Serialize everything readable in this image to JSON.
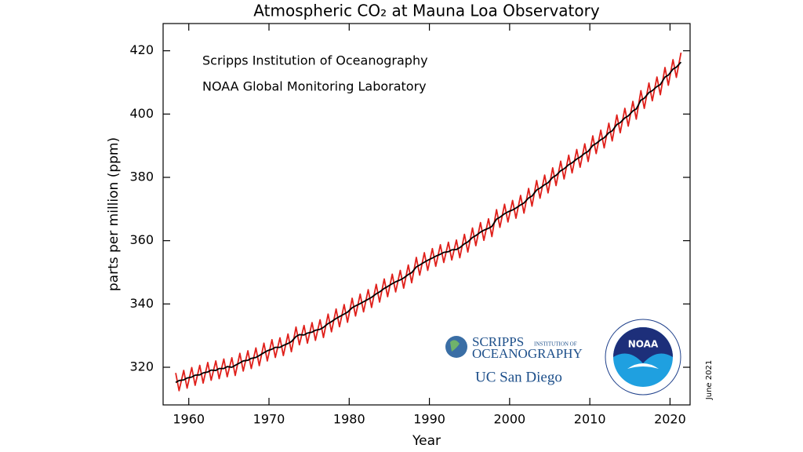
{
  "chart_data": {
    "type": "line",
    "title": "Atmospheric CO₂ at Mauna Loa Observatory",
    "x_label": "Year",
    "y_label": "parts per million (ppm)",
    "annotations": [
      "Scripps Institution of Oceanography",
      "NOAA Global Monitoring Laboratory",
      "June 2021"
    ],
    "logos": [
      "SCRIPPS",
      "INSTITUTION OF",
      "OCEANOGRAPHY",
      "UC San Diego",
      "NOAA"
    ],
    "xlim": [
      1956.8,
      2022.5
    ],
    "ylim": [
      308.1,
      428.6
    ],
    "xticks": [
      1960,
      1970,
      1980,
      1990,
      2000,
      2010,
      2020
    ],
    "yticks": [
      320,
      340,
      360,
      380,
      400,
      420
    ],
    "x": [
      1958.37,
      1958.79,
      1959.37,
      1959.79,
      1960.37,
      1960.79,
      1961.37,
      1961.79,
      1962.37,
      1962.79,
      1963.37,
      1963.79,
      1964.37,
      1964.79,
      1965.37,
      1965.79,
      1966.37,
      1966.79,
      1967.37,
      1967.79,
      1968.37,
      1968.79,
      1969.37,
      1969.79,
      1970.37,
      1970.79,
      1971.37,
      1971.79,
      1972.37,
      1972.79,
      1973.37,
      1973.79,
      1974.37,
      1974.79,
      1975.37,
      1975.79,
      1976.37,
      1976.79,
      1977.37,
      1977.79,
      1978.37,
      1978.79,
      1979.37,
      1979.79,
      1980.37,
      1980.79,
      1981.37,
      1981.79,
      1982.37,
      1982.79,
      1983.37,
      1983.79,
      1984.37,
      1984.79,
      1985.37,
      1985.79,
      1986.37,
      1986.79,
      1987.37,
      1987.79,
      1988.37,
      1988.79,
      1989.37,
      1989.79,
      1990.37,
      1990.79,
      1991.37,
      1991.79,
      1992.37,
      1992.79,
      1993.37,
      1993.79,
      1994.37,
      1994.79,
      1995.37,
      1995.79,
      1996.37,
      1996.79,
      1997.37,
      1997.79,
      1998.37,
      1998.79,
      1999.37,
      1999.79,
      2000.37,
      2000.79,
      2001.37,
      2001.79,
      2002.37,
      2002.79,
      2003.37,
      2003.79,
      2004.37,
      2004.79,
      2005.37,
      2005.79,
      2006.37,
      2006.79,
      2007.37,
      2007.79,
      2008.37,
      2008.79,
      2009.37,
      2009.79,
      2010.37,
      2010.79,
      2011.37,
      2011.79,
      2012.37,
      2012.79,
      2013.37,
      2013.79,
      2014.37,
      2014.79,
      2015.37,
      2015.79,
      2016.37,
      2016.79,
      2017.37,
      2017.79,
      2018.37,
      2018.79,
      2019.37,
      2019.79,
      2020.37,
      2020.79,
      2021.37
    ],
    "series": [
      {
        "color": "#e0201b",
        "values": [
          318.2,
          312.6,
          319.0,
          313.4,
          319.9,
          314.3,
          320.6,
          315.0,
          321.5,
          315.9,
          322.0,
          316.4,
          322.6,
          317.0,
          323.0,
          317.4,
          324.4,
          318.8,
          325.2,
          319.6,
          326.1,
          320.5,
          327.6,
          322.0,
          328.7,
          323.1,
          329.3,
          323.7,
          330.5,
          324.9,
          332.7,
          327.1,
          333.2,
          327.6,
          334.1,
          328.5,
          335.0,
          329.4,
          336.8,
          331.2,
          338.4,
          332.8,
          339.8,
          334.2,
          341.8,
          336.2,
          343.1,
          337.5,
          344.5,
          338.9,
          346.2,
          340.6,
          347.9,
          342.3,
          349.4,
          343.8,
          350.6,
          345.0,
          352.3,
          346.7,
          354.7,
          349.1,
          356.2,
          350.6,
          357.5,
          351.9,
          358.7,
          353.1,
          359.5,
          353.9,
          360.2,
          354.6,
          362.0,
          356.4,
          364.0,
          358.4,
          365.7,
          360.1,
          366.9,
          361.3,
          369.8,
          364.2,
          371.5,
          365.9,
          372.7,
          367.1,
          374.3,
          368.7,
          376.5,
          370.9,
          379.0,
          373.4,
          380.7,
          375.1,
          383.0,
          377.4,
          385.1,
          379.5,
          387.0,
          381.4,
          388.8,
          383.2,
          390.6,
          385.0,
          393.1,
          387.5,
          394.9,
          389.3,
          397.1,
          391.5,
          399.7,
          394.1,
          401.8,
          396.2,
          404.0,
          398.4,
          407.4,
          401.8,
          409.8,
          404.2,
          411.7,
          406.1,
          414.7,
          409.1,
          417.2,
          411.6,
          419.4
        ]
      },
      {
        "color": "#000000",
        "values": [
          315.2,
          315.8,
          316.0,
          316.6,
          316.9,
          317.5,
          317.6,
          318.2,
          318.5,
          319.1,
          319.0,
          319.6,
          319.6,
          320.2,
          320.0,
          320.6,
          321.4,
          322.0,
          322.2,
          322.8,
          323.1,
          323.7,
          324.6,
          325.2,
          325.7,
          326.3,
          326.3,
          326.9,
          327.5,
          328.1,
          329.7,
          330.3,
          330.2,
          330.8,
          331.1,
          331.7,
          332.0,
          332.6,
          333.8,
          334.4,
          335.4,
          336.0,
          336.8,
          337.4,
          338.8,
          339.4,
          340.1,
          340.7,
          341.5,
          342.1,
          343.2,
          343.8,
          344.9,
          345.5,
          346.4,
          347.0,
          347.6,
          348.2,
          349.3,
          349.9,
          351.7,
          352.3,
          353.2,
          353.8,
          354.5,
          355.1,
          355.7,
          356.3,
          356.5,
          357.1,
          357.2,
          357.8,
          359.0,
          359.6,
          361.0,
          361.6,
          362.7,
          363.3,
          363.9,
          364.5,
          366.8,
          367.4,
          368.5,
          369.1,
          369.7,
          370.3,
          371.3,
          371.9,
          373.5,
          374.1,
          376.0,
          376.6,
          377.7,
          378.3,
          380.0,
          380.6,
          382.1,
          382.7,
          384.0,
          384.6,
          385.8,
          386.4,
          387.6,
          388.2,
          390.1,
          390.7,
          391.9,
          392.5,
          394.1,
          394.7,
          396.7,
          397.3,
          398.8,
          399.4,
          401.0,
          401.6,
          404.4,
          405.0,
          406.8,
          407.4,
          408.7,
          409.3,
          411.7,
          412.3,
          414.2,
          414.8,
          416.4
        ]
      }
    ]
  }
}
